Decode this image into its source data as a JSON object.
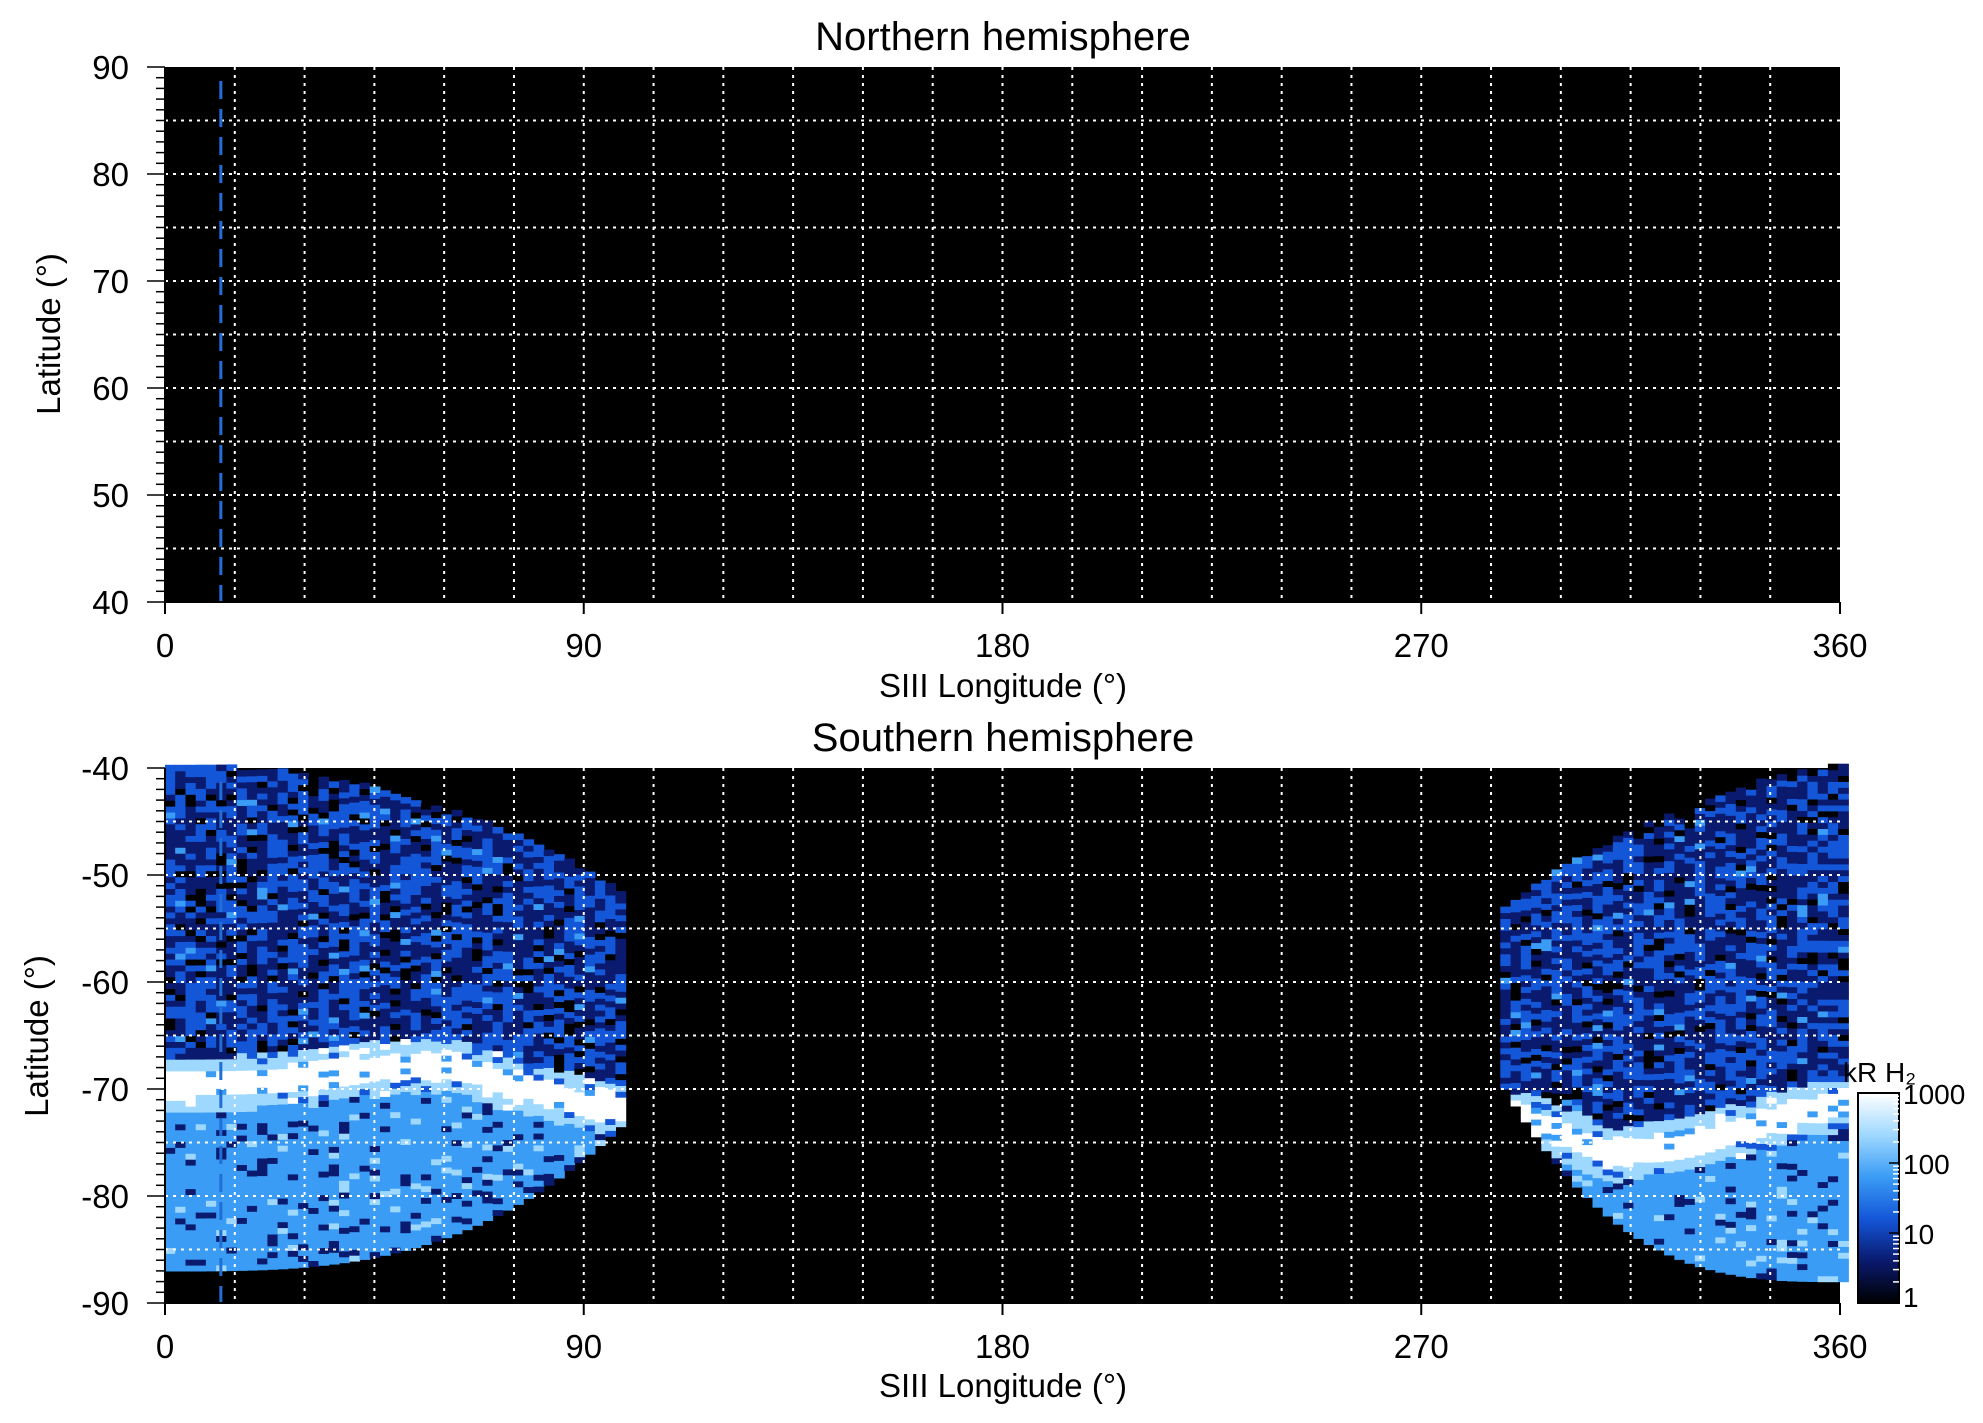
{
  "chart_data": [
    {
      "type": "heatmap",
      "title": "Northern hemisphere",
      "xlabel": "SIII Longitude (°)",
      "ylabel": "Latitude (°)",
      "xlim": [
        0,
        360
      ],
      "ylim": [
        40,
        90
      ],
      "xticks": [
        0,
        90,
        180,
        270,
        360
      ],
      "yticks": [
        40,
        50,
        60,
        70,
        80,
        90
      ],
      "grid": true,
      "grid_x_step": 15,
      "grid_y_step": 5,
      "background": "#000000",
      "marker_line": {
        "x": 12,
        "color": "#1f6fd6",
        "style": "dashed"
      },
      "emission": "none"
    },
    {
      "type": "heatmap",
      "title": "Southern hemisphere",
      "xlabel": "SIII Longitude (°)",
      "ylabel": "Latitude (°)",
      "xlim": [
        0,
        360
      ],
      "ylim": [
        -90,
        -40
      ],
      "xticks": [
        0,
        90,
        180,
        270,
        360
      ],
      "yticks": [
        -90,
        -80,
        -70,
        -60,
        -50,
        -40
      ],
      "grid": true,
      "grid_x_step": 15,
      "grid_y_step": 5,
      "background": "#000000",
      "marker_line": {
        "x": 12,
        "color": "#1f6fd6",
        "style": "dashed"
      },
      "emission_regions": [
        {
          "lon_range": [
            0,
            98
          ],
          "lat_range": [
            -87,
            -40
          ],
          "oval_lat_at_lon": [
            [
              0,
              -70
            ],
            [
              20,
              -69.5
            ],
            [
              40,
              -68.5
            ],
            [
              60,
              -68
            ],
            [
              80,
              -70.5
            ],
            [
              92,
              -72
            ]
          ]
        },
        {
          "lon_range": [
            287,
            360
          ],
          "lat_range": [
            -88,
            -40
          ],
          "oval_lat_at_lon": [
            [
              292,
              -73
            ],
            [
              310,
              -76.5
            ],
            [
              330,
              -75
            ],
            [
              350,
              -72.5
            ],
            [
              360,
              -71.5
            ]
          ]
        }
      ],
      "colorbar": {
        "label": "kR H₂",
        "ticks": [
          1,
          10,
          100,
          1000
        ],
        "scale": "log",
        "colors": [
          "#000000",
          "#0a1a6e",
          "#1456d8",
          "#3a9cf5",
          "#9fd8ff",
          "#ffffff"
        ]
      }
    }
  ]
}
